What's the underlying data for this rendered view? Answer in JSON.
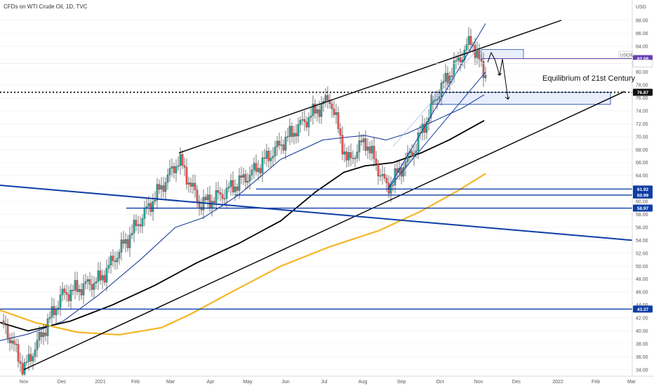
{
  "header": {
    "title": "CFDs on WTI Crude Oil, 1D, TVC",
    "currency": "USD"
  },
  "colors": {
    "up": "#26a69a",
    "down": "#ef5350",
    "ma_fast": "#1e3f9a",
    "ma_mid": "#000000",
    "ma_slow": "#f5b82e",
    "line_blue": "#0d3ea5",
    "zone_fill": "#e8eefc",
    "tag_blue": "#0d3ea5",
    "tag_purple": "#6a3fb5",
    "tag_black": "#111111"
  },
  "chart_data": {
    "type": "candlestick",
    "title": "CFDs on WTI Crude Oil, 1D, TVC",
    "ylim": [
      33,
      88
    ],
    "y_ticks": [
      "34.00",
      "36.00",
      "38.00",
      "40.00",
      "42.00",
      "44.00",
      "46.00",
      "48.00",
      "50.00",
      "52.00",
      "54.00",
      "56.00",
      "58.00",
      "60.00",
      "62.00",
      "64.00",
      "66.00",
      "68.00",
      "70.00",
      "72.00",
      "74.00",
      "76.00",
      "78.00",
      "80.00",
      "82.00",
      "84.00",
      "86.00",
      "88.00"
    ],
    "x_ticks": [
      "Nov",
      "Dec",
      "2021",
      "Feb",
      "Mar",
      "Apr",
      "May",
      "Jun",
      "Jul",
      "Aug",
      "Sep",
      "Oct",
      "Nov",
      "Dec",
      "2022",
      "Feb",
      "Mar"
    ],
    "price_waypoints": [
      [
        "Nov",
        40.5
      ],
      [
        "Nov",
        34.0
      ],
      [
        "Dec",
        45.5
      ],
      [
        "2021",
        48.0
      ],
      [
        "Feb",
        58.0
      ],
      [
        "Mar",
        66.5
      ],
      [
        "Mar",
        59.5
      ],
      [
        "Apr",
        61.0
      ],
      [
        "May",
        64.5
      ],
      [
        "Jun",
        71.0
      ],
      [
        "Jul",
        76.0
      ],
      [
        "Jul",
        66.0
      ],
      [
        "Aug",
        69.5
      ],
      [
        "Aug",
        62.0
      ],
      [
        "Sep",
        68.0
      ],
      [
        "Oct",
        77.0
      ],
      [
        "Oct",
        85.0
      ],
      [
        "Nov",
        79.5
      ],
      [
        "Nov",
        81.3
      ]
    ],
    "annotations": {
      "equilibrium_label": "Equilibrium of 21st Century",
      "symbol_label": "USOIL"
    },
    "price_tags": [
      {
        "label": "82.08",
        "value": 82.08,
        "color": "#6a3fb5"
      },
      {
        "label": "81.34",
        "value": 81.34,
        "color": "#ffffff",
        "text_color": "#333333"
      },
      {
        "label": "76.87",
        "value": 76.87,
        "color": "#111111"
      },
      {
        "label": "61.92",
        "value": 61.92,
        "color": "#0d3ea5"
      },
      {
        "label": "60.99",
        "value": 60.99,
        "color": "#0d3ea5"
      },
      {
        "label": "58.97",
        "value": 58.97,
        "color": "#0d3ea5"
      },
      {
        "label": "43.37",
        "value": 43.37,
        "color": "#0d3ea5"
      }
    ]
  }
}
